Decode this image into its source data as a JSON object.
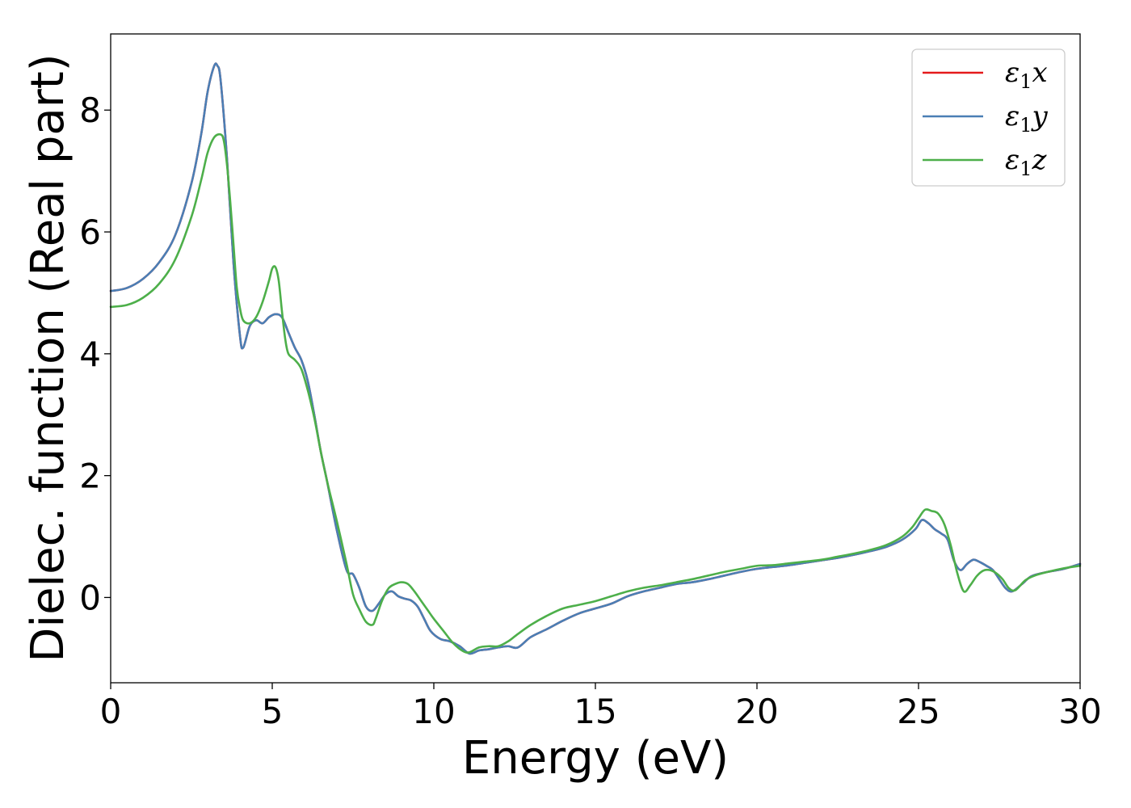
{
  "chart_data": {
    "type": "line",
    "title": "",
    "xlabel": "Energy (eV)",
    "ylabel": "Dielec. function (Real part)",
    "xlim": [
      0,
      30
    ],
    "ylim": [
      -1.4,
      9.25
    ],
    "xticks": [
      0,
      5,
      10,
      15,
      20,
      25,
      30
    ],
    "yticks": [
      0,
      2,
      4,
      6,
      8
    ],
    "grid": false,
    "legend_position": "top-right",
    "series": [
      {
        "name": "ε1x",
        "legend_base": "ε",
        "legend_sub": "1",
        "legend_suffix": "x",
        "color": "#e41a1c",
        "x": [
          0,
          0.5,
          1,
          1.5,
          2,
          2.5,
          2.8,
          3.0,
          3.2,
          3.3,
          3.4,
          3.6,
          3.8,
          4.0,
          4.1,
          4.3,
          4.5,
          4.7,
          4.9,
          5.1,
          5.3,
          5.5,
          5.7,
          5.9,
          6.1,
          6.3,
          6.5,
          6.7,
          7.0,
          7.3,
          7.5,
          7.7,
          7.9,
          8.1,
          8.3,
          8.5,
          8.7,
          8.9,
          9.1,
          9.3,
          9.5,
          9.7,
          9.9,
          10.2,
          10.5,
          10.8,
          11.1,
          11.4,
          11.7,
          12.0,
          12.3,
          12.6,
          13.0,
          13.5,
          14.0,
          14.5,
          15.0,
          15.5,
          16.0,
          16.5,
          17.0,
          17.5,
          18.0,
          18.5,
          19.0,
          19.5,
          20.0,
          20.5,
          21.0,
          21.5,
          22.0,
          22.5,
          23.0,
          23.5,
          24.0,
          24.5,
          24.9,
          25.1,
          25.3,
          25.5,
          25.7,
          25.9,
          26.1,
          26.3,
          26.5,
          26.7,
          26.9,
          27.1,
          27.3,
          27.5,
          27.7,
          27.9,
          28.2,
          28.5,
          29.0,
          29.5,
          30.0
        ],
        "values": [
          5.03,
          5.08,
          5.23,
          5.5,
          5.95,
          6.8,
          7.6,
          8.3,
          8.72,
          8.73,
          8.5,
          7.2,
          5.5,
          4.3,
          4.1,
          4.45,
          4.55,
          4.5,
          4.6,
          4.65,
          4.6,
          4.35,
          4.1,
          3.9,
          3.55,
          3.0,
          2.4,
          1.9,
          1.1,
          0.45,
          0.38,
          0.15,
          -0.15,
          -0.22,
          -0.1,
          0.05,
          0.1,
          0.02,
          -0.02,
          -0.05,
          -0.15,
          -0.35,
          -0.55,
          -0.68,
          -0.72,
          -0.8,
          -0.92,
          -0.87,
          -0.85,
          -0.82,
          -0.8,
          -0.82,
          -0.65,
          -0.52,
          -0.38,
          -0.26,
          -0.18,
          -0.1,
          0.02,
          0.1,
          0.16,
          0.22,
          0.25,
          0.3,
          0.36,
          0.42,
          0.47,
          0.5,
          0.53,
          0.57,
          0.61,
          0.65,
          0.7,
          0.76,
          0.83,
          0.95,
          1.12,
          1.27,
          1.22,
          1.12,
          1.05,
          0.95,
          0.6,
          0.45,
          0.55,
          0.62,
          0.58,
          0.52,
          0.45,
          0.3,
          0.15,
          0.1,
          0.22,
          0.35,
          0.42,
          0.47,
          0.55
        ]
      },
      {
        "name": "ε1y",
        "legend_base": "ε",
        "legend_sub": "1",
        "legend_suffix": "y",
        "color": "#4a7fb5",
        "x": [
          0,
          0.5,
          1,
          1.5,
          2,
          2.5,
          2.8,
          3.0,
          3.2,
          3.3,
          3.4,
          3.6,
          3.8,
          4.0,
          4.1,
          4.3,
          4.5,
          4.7,
          4.9,
          5.1,
          5.3,
          5.5,
          5.7,
          5.9,
          6.1,
          6.3,
          6.5,
          6.7,
          7.0,
          7.3,
          7.5,
          7.7,
          7.9,
          8.1,
          8.3,
          8.5,
          8.7,
          8.9,
          9.1,
          9.3,
          9.5,
          9.7,
          9.9,
          10.2,
          10.5,
          10.8,
          11.1,
          11.4,
          11.7,
          12.0,
          12.3,
          12.6,
          13.0,
          13.5,
          14.0,
          14.5,
          15.0,
          15.5,
          16.0,
          16.5,
          17.0,
          17.5,
          18.0,
          18.5,
          19.0,
          19.5,
          20.0,
          20.5,
          21.0,
          21.5,
          22.0,
          22.5,
          23.0,
          23.5,
          24.0,
          24.5,
          24.9,
          25.1,
          25.3,
          25.5,
          25.7,
          25.9,
          26.1,
          26.3,
          26.5,
          26.7,
          26.9,
          27.1,
          27.3,
          27.5,
          27.7,
          27.9,
          28.2,
          28.5,
          29.0,
          29.5,
          30.0
        ],
        "values": [
          5.03,
          5.08,
          5.23,
          5.5,
          5.95,
          6.8,
          7.6,
          8.3,
          8.72,
          8.73,
          8.5,
          7.2,
          5.5,
          4.3,
          4.1,
          4.45,
          4.55,
          4.5,
          4.6,
          4.65,
          4.6,
          4.35,
          4.1,
          3.9,
          3.55,
          3.0,
          2.4,
          1.9,
          1.1,
          0.45,
          0.38,
          0.15,
          -0.15,
          -0.22,
          -0.1,
          0.05,
          0.1,
          0.02,
          -0.02,
          -0.05,
          -0.15,
          -0.35,
          -0.55,
          -0.68,
          -0.72,
          -0.8,
          -0.92,
          -0.87,
          -0.85,
          -0.82,
          -0.8,
          -0.82,
          -0.65,
          -0.52,
          -0.38,
          -0.26,
          -0.18,
          -0.1,
          0.02,
          0.1,
          0.16,
          0.22,
          0.25,
          0.3,
          0.36,
          0.42,
          0.47,
          0.5,
          0.53,
          0.57,
          0.61,
          0.65,
          0.7,
          0.76,
          0.83,
          0.95,
          1.12,
          1.27,
          1.22,
          1.12,
          1.05,
          0.95,
          0.6,
          0.45,
          0.55,
          0.62,
          0.58,
          0.52,
          0.45,
          0.3,
          0.15,
          0.1,
          0.22,
          0.35,
          0.42,
          0.47,
          0.55
        ]
      },
      {
        "name": "ε1z",
        "legend_base": "ε",
        "legend_sub": "1",
        "legend_suffix": "z",
        "color": "#4daf4a",
        "x": [
          0,
          0.5,
          1,
          1.5,
          2,
          2.5,
          2.8,
          3.0,
          3.2,
          3.4,
          3.5,
          3.6,
          3.7,
          3.8,
          3.9,
          4.0,
          4.1,
          4.3,
          4.5,
          4.7,
          4.9,
          5.0,
          5.1,
          5.2,
          5.3,
          5.4,
          5.5,
          5.7,
          5.9,
          6.1,
          6.3,
          6.5,
          6.7,
          7.0,
          7.3,
          7.5,
          7.7,
          7.9,
          8.1,
          8.2,
          8.4,
          8.6,
          8.8,
          9.0,
          9.2,
          9.4,
          9.6,
          9.8,
          10.0,
          10.3,
          10.6,
          10.9,
          11.1,
          11.4,
          11.7,
          12.0,
          12.3,
          12.6,
          13.0,
          13.5,
          14.0,
          14.5,
          15.0,
          15.5,
          16.0,
          16.5,
          17.0,
          17.5,
          18.0,
          18.5,
          19.0,
          19.5,
          20.0,
          20.5,
          21.0,
          21.5,
          22.0,
          22.5,
          23.0,
          23.5,
          24.0,
          24.5,
          24.8,
          25.0,
          25.2,
          25.4,
          25.6,
          25.8,
          26.0,
          26.2,
          26.4,
          26.6,
          26.8,
          27.0,
          27.2,
          27.4,
          27.6,
          27.8,
          28.0,
          28.3,
          28.6,
          29.0,
          29.5,
          30.0
        ],
        "values": [
          4.77,
          4.8,
          4.92,
          5.15,
          5.55,
          6.25,
          6.85,
          7.3,
          7.55,
          7.6,
          7.5,
          7.1,
          6.5,
          5.8,
          5.1,
          4.75,
          4.55,
          4.5,
          4.6,
          4.85,
          5.2,
          5.4,
          5.42,
          5.2,
          4.7,
          4.25,
          4.0,
          3.9,
          3.75,
          3.4,
          2.95,
          2.4,
          1.9,
          1.25,
          0.55,
          0.05,
          -0.2,
          -0.4,
          -0.45,
          -0.35,
          -0.05,
          0.15,
          0.22,
          0.25,
          0.22,
          0.1,
          -0.05,
          -0.2,
          -0.35,
          -0.55,
          -0.75,
          -0.88,
          -0.9,
          -0.82,
          -0.8,
          -0.8,
          -0.72,
          -0.6,
          -0.45,
          -0.3,
          -0.18,
          -0.12,
          -0.06,
          0.02,
          0.1,
          0.16,
          0.2,
          0.25,
          0.3,
          0.36,
          0.42,
          0.47,
          0.52,
          0.53,
          0.56,
          0.59,
          0.62,
          0.67,
          0.72,
          0.78,
          0.86,
          1.0,
          1.15,
          1.3,
          1.44,
          1.42,
          1.38,
          1.2,
          0.85,
          0.4,
          0.1,
          0.2,
          0.35,
          0.44,
          0.45,
          0.4,
          0.3,
          0.15,
          0.12,
          0.28,
          0.36,
          0.42,
          0.48,
          0.52
        ]
      }
    ]
  }
}
